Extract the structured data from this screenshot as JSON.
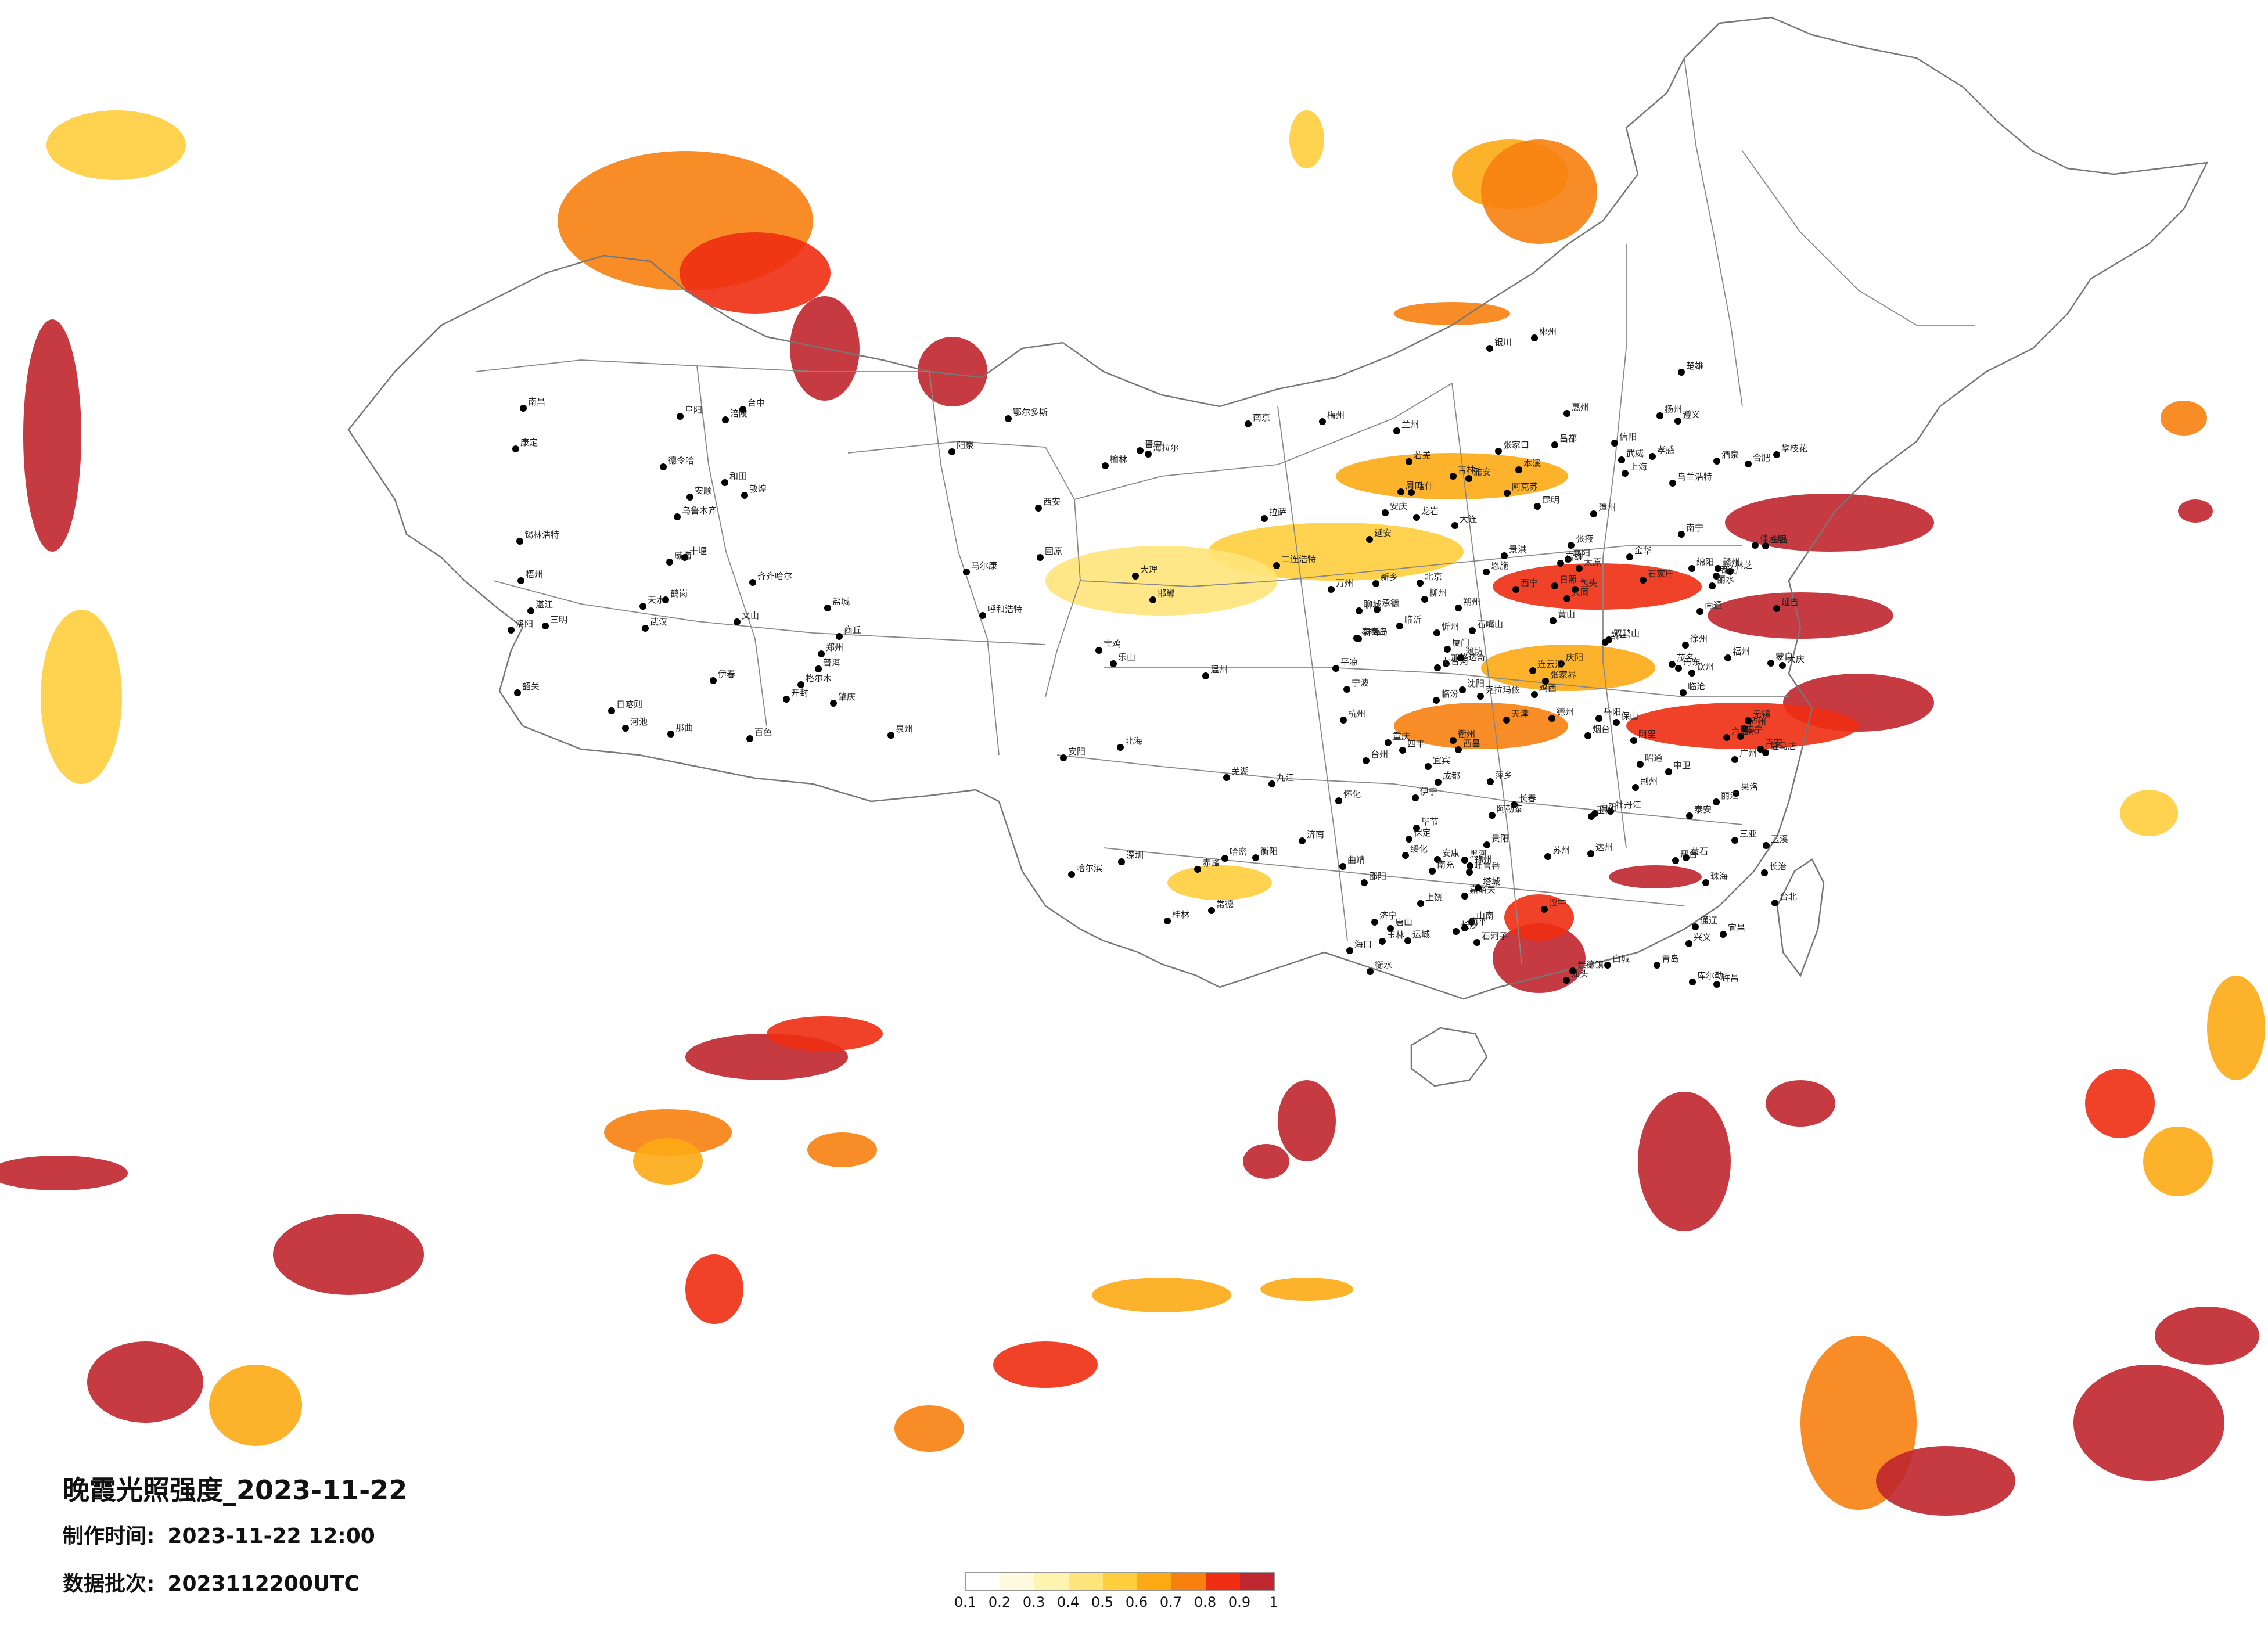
{
  "title": "晚霞光照强度_2023-11-22",
  "info": {
    "made_label": "制作时间:",
    "made_value": "2023-11-22 12:00",
    "batch_label": "数据批次:",
    "batch_value": "2023112200UTC"
  },
  "legend": {
    "ticks": [
      "0.1",
      "0.2",
      "0.3",
      "0.4",
      "0.5",
      "0.6",
      "0.7",
      "0.8",
      "0.9",
      "1"
    ],
    "colors": [
      "#ffffff",
      "#fffbe0",
      "#fff3b0",
      "#ffe47a",
      "#ffce3c",
      "#fdaa14",
      "#f7800f",
      "#ee2d12",
      "#c0262e"
    ]
  },
  "colors": {
    "boundary": "#777777",
    "dot": "#000000"
  },
  "cities": [
    {
      "name": "加格达奇"
    },
    {
      "name": "黑河"
    },
    {
      "name": "海拉尔"
    },
    {
      "name": "伊春"
    },
    {
      "name": "鹤岗"
    },
    {
      "name": "齐齐哈尔"
    },
    {
      "name": "大庆"
    },
    {
      "name": "绥化"
    },
    {
      "name": "佳木斯"
    },
    {
      "name": "双鸭山"
    },
    {
      "name": "七台河"
    },
    {
      "name": "鸡西"
    },
    {
      "name": "哈尔滨"
    },
    {
      "name": "乌兰浩特"
    },
    {
      "name": "白城"
    },
    {
      "name": "牡丹江"
    },
    {
      "name": "长春"
    },
    {
      "name": "吉林"
    },
    {
      "name": "锡林浩特"
    },
    {
      "name": "延吉"
    },
    {
      "name": "通辽"
    },
    {
      "name": "四平"
    },
    {
      "name": "赤峰"
    },
    {
      "name": "沈阳"
    },
    {
      "name": "锦州"
    },
    {
      "name": "本溪"
    },
    {
      "name": "丹东"
    },
    {
      "name": "大连"
    },
    {
      "name": "张家口"
    },
    {
      "name": "北京"
    },
    {
      "name": "天津"
    },
    {
      "name": "唐山"
    },
    {
      "name": "秦皇岛"
    },
    {
      "name": "承德"
    },
    {
      "name": "石家庄"
    },
    {
      "name": "保定"
    },
    {
      "name": "衡水"
    },
    {
      "name": "邢台"
    },
    {
      "name": "邯郸"
    },
    {
      "name": "呼和浩特"
    },
    {
      "name": "包头"
    },
    {
      "name": "鄂尔多斯"
    },
    {
      "name": "二连浩特"
    },
    {
      "name": "集宁"
    },
    {
      "name": "大同"
    },
    {
      "name": "朔州"
    },
    {
      "name": "忻州"
    },
    {
      "name": "太原"
    },
    {
      "name": "阳泉"
    },
    {
      "name": "晋中"
    },
    {
      "name": "长治"
    },
    {
      "name": "临汾"
    },
    {
      "name": "运城"
    },
    {
      "name": "济南"
    },
    {
      "name": "青岛"
    },
    {
      "name": "烟台"
    },
    {
      "name": "威海"
    },
    {
      "name": "潍坊"
    },
    {
      "name": "临沂"
    },
    {
      "name": "泰安"
    },
    {
      "name": "济宁"
    },
    {
      "name": "聊城"
    },
    {
      "name": "德州"
    },
    {
      "name": "日照"
    },
    {
      "name": "郑州"
    },
    {
      "name": "开封"
    },
    {
      "name": "洛阳"
    },
    {
      "name": "新乡"
    },
    {
      "name": "安阳"
    },
    {
      "name": "许昌"
    },
    {
      "name": "南阳"
    },
    {
      "name": "信阳"
    },
    {
      "name": "驻马店"
    },
    {
      "name": "商丘"
    },
    {
      "name": "周口"
    },
    {
      "name": "西安"
    },
    {
      "name": "宝鸡"
    },
    {
      "name": "延安"
    },
    {
      "name": "榆林"
    },
    {
      "name": "汉中"
    },
    {
      "name": "安康"
    },
    {
      "name": "兰州"
    },
    {
      "name": "天水"
    },
    {
      "name": "平凉"
    },
    {
      "name": "庆阳"
    },
    {
      "name": "西宁"
    },
    {
      "name": "银川"
    },
    {
      "name": "石嘴山"
    },
    {
      "name": "中卫"
    },
    {
      "name": "固原"
    },
    {
      "name": "武威"
    },
    {
      "name": "张掖"
    },
    {
      "name": "金昌"
    },
    {
      "name": "酒泉"
    },
    {
      "name": "嘉峪关"
    },
    {
      "name": "敦煌"
    },
    {
      "name": "格尔木"
    },
    {
      "name": "德令哈"
    },
    {
      "name": "玉树"
    },
    {
      "name": "果洛"
    },
    {
      "name": "乌鲁木齐"
    },
    {
      "name": "克拉玛依"
    },
    {
      "name": "伊宁"
    },
    {
      "name": "石河子"
    },
    {
      "name": "塔城"
    },
    {
      "name": "阿勒泰"
    },
    {
      "name": "哈密"
    },
    {
      "name": "吐鲁番"
    },
    {
      "name": "库尔勒"
    },
    {
      "name": "阿克苏"
    },
    {
      "name": "喀什"
    },
    {
      "name": "和田"
    },
    {
      "name": "若羌"
    },
    {
      "name": "拉萨"
    },
    {
      "name": "日喀则"
    },
    {
      "name": "林芝"
    },
    {
      "name": "昌都"
    },
    {
      "name": "那曲"
    },
    {
      "name": "阿里"
    },
    {
      "name": "山南"
    },
    {
      "name": "成都"
    },
    {
      "name": "绵阳"
    },
    {
      "name": "南充"
    },
    {
      "name": "达州"
    },
    {
      "name": "乐山"
    },
    {
      "name": "宜宾"
    },
    {
      "name": "泸州"
    },
    {
      "name": "雅安"
    },
    {
      "name": "西昌"
    },
    {
      "name": "康定"
    },
    {
      "name": "马尔康"
    },
    {
      "name": "攀枝花"
    },
    {
      "name": "重庆"
    },
    {
      "name": "万州"
    },
    {
      "name": "涪陵"
    },
    {
      "name": "贵阳"
    },
    {
      "name": "遵义"
    },
    {
      "name": "六盘水"
    },
    {
      "name": "安顺"
    },
    {
      "name": "毕节"
    },
    {
      "name": "凯里"
    },
    {
      "name": "都匀"
    },
    {
      "name": "兴义"
    },
    {
      "name": "昆明"
    },
    {
      "name": "大理"
    },
    {
      "name": "丽江"
    },
    {
      "name": "曲靖"
    },
    {
      "name": "玉溪"
    },
    {
      "name": "保山"
    },
    {
      "name": "临沧"
    },
    {
      "name": "普洱"
    },
    {
      "name": "景洪"
    },
    {
      "name": "蒙自"
    },
    {
      "name": "文山"
    },
    {
      "name": "楚雄"
    },
    {
      "name": "昭通"
    },
    {
      "name": "南宁"
    },
    {
      "name": "柳州"
    },
    {
      "name": "桂林"
    },
    {
      "name": "梧州"
    },
    {
      "name": "北海"
    },
    {
      "name": "百色"
    },
    {
      "name": "河池"
    },
    {
      "name": "玉林"
    },
    {
      "name": "钦州"
    },
    {
      "name": "广州"
    },
    {
      "name": "深圳"
    },
    {
      "name": "珠海"
    },
    {
      "name": "汕头"
    },
    {
      "name": "湛江"
    },
    {
      "name": "韶关"
    },
    {
      "name": "梅州"
    },
    {
      "name": "惠州"
    },
    {
      "name": "茂名"
    },
    {
      "name": "肇庆"
    },
    {
      "name": "海口"
    },
    {
      "name": "三亚"
    },
    {
      "name": "长沙"
    },
    {
      "name": "岳阳"
    },
    {
      "name": "常德"
    },
    {
      "name": "衡阳"
    },
    {
      "name": "郴州"
    },
    {
      "name": "邵阳"
    },
    {
      "name": "怀化"
    },
    {
      "name": "张家界"
    },
    {
      "name": "武汉"
    },
    {
      "name": "宜昌"
    },
    {
      "name": "襄阳"
    },
    {
      "name": "荆州"
    },
    {
      "name": "黄石"
    },
    {
      "name": "十堰"
    },
    {
      "name": "恩施"
    },
    {
      "name": "孝感"
    },
    {
      "name": "南昌"
    },
    {
      "name": "九江"
    },
    {
      "name": "赣州"
    },
    {
      "name": "景德镇"
    },
    {
      "name": "上饶"
    },
    {
      "name": "吉安"
    },
    {
      "name": "萍乡"
    },
    {
      "name": "合肥"
    },
    {
      "name": "芜湖"
    },
    {
      "name": "安庆"
    },
    {
      "name": "蚌埠"
    },
    {
      "name": "阜阳"
    },
    {
      "name": "黄山"
    },
    {
      "name": "南京"
    },
    {
      "name": "苏州"
    },
    {
      "name": "无锡"
    },
    {
      "name": "徐州"
    },
    {
      "name": "连云港"
    },
    {
      "name": "盐城"
    },
    {
      "name": "南通"
    },
    {
      "name": "扬州"
    },
    {
      "name": "上海"
    },
    {
      "name": "杭州"
    },
    {
      "name": "宁波"
    },
    {
      "name": "温州"
    },
    {
      "name": "金华"
    },
    {
      "name": "台州"
    },
    {
      "name": "丽水"
    },
    {
      "name": "衢州"
    },
    {
      "name": "福州"
    },
    {
      "name": "厦门"
    },
    {
      "name": "泉州"
    },
    {
      "name": "漳州"
    },
    {
      "name": "龙岩"
    },
    {
      "name": "南平"
    },
    {
      "name": "三明"
    },
    {
      "name": "台北"
    },
    {
      "name": "台中"
    },
    {
      "name": "高雄"
    }
  ]
}
